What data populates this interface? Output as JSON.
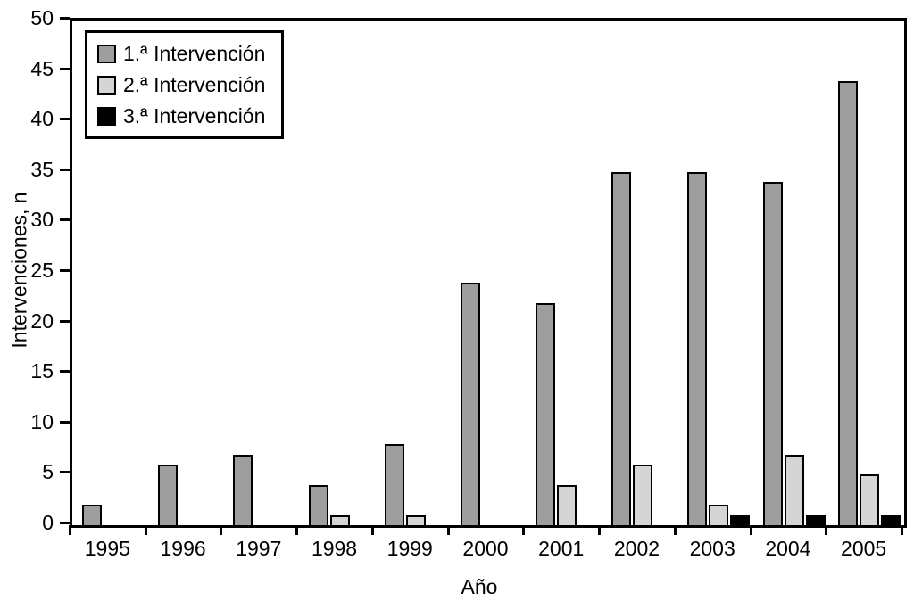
{
  "chart_data": {
    "type": "bar",
    "title": "",
    "xlabel": "Año",
    "ylabel": "Intervenciones, n",
    "categories": [
      "1995",
      "1996",
      "1997",
      "1998",
      "1999",
      "2000",
      "2001",
      "2002",
      "2003",
      "2004",
      "2005"
    ],
    "series": [
      {
        "name": "1.ª Intervención",
        "color": "#9e9e9e",
        "values": [
          2,
          6,
          7,
          4,
          8,
          24,
          22,
          35,
          35,
          34,
          44
        ]
      },
      {
        "name": "2.ª Intervención",
        "color": "#d5d5d5",
        "values": [
          0,
          0,
          0,
          1,
          1,
          0,
          4,
          6,
          2,
          7,
          5
        ]
      },
      {
        "name": "3.ª Intervención",
        "color": "#000000",
        "values": [
          0,
          0,
          0,
          0,
          0,
          0,
          0,
          0,
          1,
          1,
          1
        ]
      }
    ],
    "ylim": [
      0,
      50
    ],
    "yticks": [
      0,
      5,
      10,
      15,
      20,
      25,
      30,
      35,
      40,
      45,
      50
    ],
    "grid": false,
    "legend_position": "top-left",
    "background_color": "#ffffff",
    "axis_color": "#000000"
  }
}
